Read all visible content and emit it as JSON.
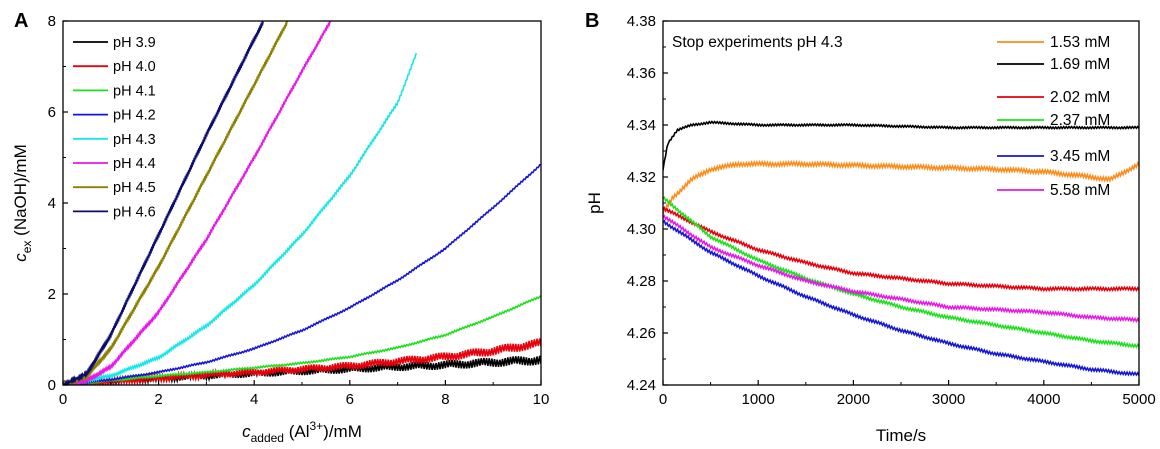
{
  "chart_data": [
    {
      "type": "line",
      "panel_label": "A",
      "xlabel": {
        "main": "c",
        "sub": "added",
        "rest": " (Al",
        "sup": "3+",
        "tail": ")/mM"
      },
      "ylabel": {
        "main": "c",
        "sub": "ex",
        "rest": " (NaOH)/mM"
      },
      "xlim": [
        0,
        10
      ],
      "ylim": [
        0,
        8
      ],
      "xticks": [
        0,
        2,
        4,
        6,
        8,
        10
      ],
      "yticks": [
        0,
        2,
        4,
        6,
        8
      ],
      "grid": false,
      "legend_position": "top-left",
      "series": [
        {
          "name": "pH 3.9",
          "color": "#000000",
          "noise": 0.05,
          "noise_amp": 0.06,
          "x": [
            0,
            1,
            2,
            3,
            4,
            5,
            6,
            7,
            8,
            9,
            10
          ],
          "y": [
            0,
            0.08,
            0.14,
            0.2,
            0.25,
            0.3,
            0.35,
            0.4,
            0.44,
            0.5,
            0.55
          ]
        },
        {
          "name": "pH 4.0",
          "color": "#e8000b",
          "noise": 0.05,
          "noise_amp": 0.06,
          "x": [
            0,
            1,
            2,
            3,
            4,
            5,
            6,
            7,
            8,
            9,
            10
          ],
          "y": [
            0,
            0.08,
            0.15,
            0.22,
            0.28,
            0.35,
            0.42,
            0.52,
            0.62,
            0.75,
            0.92
          ]
        },
        {
          "name": "pH 4.1",
          "color": "#1ee01e",
          "noise": 0.0,
          "noise_amp": 0.02,
          "x": [
            0,
            1,
            2,
            3,
            4,
            5,
            6,
            7,
            8,
            9,
            10
          ],
          "y": [
            0,
            0.1,
            0.2,
            0.28,
            0.38,
            0.48,
            0.62,
            0.82,
            1.1,
            1.5,
            1.95
          ]
        },
        {
          "name": "pH 4.2",
          "color": "#1515d6",
          "noise": 0.0,
          "noise_amp": 0.02,
          "x": [
            0,
            1,
            2,
            3,
            4,
            5,
            6,
            7,
            8,
            9,
            10
          ],
          "y": [
            0,
            0.12,
            0.28,
            0.5,
            0.8,
            1.2,
            1.7,
            2.3,
            3.0,
            3.9,
            4.85
          ]
        },
        {
          "name": "pH 4.3",
          "color": "#19e6e6",
          "noise": 0.0,
          "noise_amp": 0.03,
          "x": [
            0,
            1,
            2,
            3,
            4,
            5,
            6,
            7,
            7.4
          ],
          "y": [
            0,
            0.2,
            0.6,
            1.3,
            2.2,
            3.3,
            4.6,
            6.2,
            7.3
          ]
        },
        {
          "name": "pH 4.4",
          "color": "#e619e6",
          "noise": 0.0,
          "noise_amp": 0.03,
          "x": [
            0,
            0.5,
            1,
            2,
            3,
            4,
            5,
            5.6
          ],
          "y": [
            0,
            0.1,
            0.4,
            1.6,
            3.2,
            5.0,
            6.9,
            8.0
          ]
        },
        {
          "name": "pH 4.5",
          "color": "#8b8000",
          "noise": 0.0,
          "noise_amp": 0.03,
          "x": [
            0,
            0.5,
            1,
            2,
            3,
            4,
            4.7
          ],
          "y": [
            0,
            0.2,
            0.8,
            2.6,
            4.6,
            6.6,
            8.0
          ]
        },
        {
          "name": "pH 4.6",
          "color": "#0c0c6e",
          "noise": 0.0,
          "noise_amp": 0.03,
          "x": [
            0,
            0.5,
            1,
            2,
            3,
            4,
            4.2
          ],
          "y": [
            0,
            0.25,
            1.1,
            3.3,
            5.5,
            7.6,
            8.0
          ]
        }
      ]
    },
    {
      "type": "line",
      "panel_label": "B",
      "xlabel": "Time/s",
      "ylabel": "pH",
      "xlim": [
        0,
        5000
      ],
      "ylim": [
        4.24,
        4.38
      ],
      "xticks": [
        0,
        1000,
        2000,
        3000,
        4000,
        5000
      ],
      "yticks": [
        4.24,
        4.26,
        4.28,
        4.3,
        4.32,
        4.34,
        4.36,
        4.38
      ],
      "grid": false,
      "annotation": "Stop experiments pH 4.3",
      "legend_position": "top-right",
      "series": [
        {
          "name": "1.53 mM",
          "color": "#ff8c1a",
          "noise_amp": 0.0008,
          "x": [
            0,
            100,
            300,
            500,
            800,
            1500,
            2500,
            3500,
            4000,
            4500,
            4700,
            5000
          ],
          "y": [
            4.306,
            4.312,
            4.319,
            4.323,
            4.325,
            4.325,
            4.324,
            4.323,
            4.322,
            4.32,
            4.319,
            4.325
          ]
        },
        {
          "name": "1.69 mM",
          "color": "#000000",
          "noise_amp": 0.0004,
          "x": [
            0,
            50,
            150,
            300,
            500,
            1000,
            2000,
            3000,
            4000,
            5000
          ],
          "y": [
            4.323,
            4.333,
            4.338,
            4.34,
            4.341,
            4.34,
            4.34,
            4.339,
            4.339,
            4.339
          ]
        },
        {
          "name": "2.02 mM",
          "color": "#e8000b",
          "noise_amp": 0.0006,
          "x": [
            0,
            500,
            1000,
            1500,
            2000,
            2500,
            3000,
            3500,
            4000,
            4500,
            5000
          ],
          "y": [
            4.308,
            4.299,
            4.292,
            4.287,
            4.283,
            4.281,
            4.279,
            4.278,
            4.277,
            4.277,
            4.277
          ]
        },
        {
          "name": "2.37 mM",
          "color": "#1ee01e",
          "noise_amp": 0.0006,
          "x": [
            0,
            500,
            1000,
            1500,
            2000,
            2500,
            3000,
            3500,
            4000,
            4500,
            5000
          ],
          "y": [
            4.312,
            4.297,
            4.288,
            4.281,
            4.275,
            4.27,
            4.266,
            4.263,
            4.26,
            4.257,
            4.255
          ]
        },
        {
          "name": "3.45 mM",
          "color": "#1515d6",
          "noise_amp": 0.0006,
          "x": [
            0,
            500,
            1000,
            1500,
            2000,
            2500,
            3000,
            3500,
            4000,
            4500,
            5000
          ],
          "y": [
            4.303,
            4.291,
            4.282,
            4.274,
            4.267,
            4.261,
            4.256,
            4.252,
            4.249,
            4.246,
            4.244
          ]
        },
        {
          "name": "5.58 mM",
          "color": "#e619e6",
          "noise_amp": 0.0006,
          "x": [
            0,
            500,
            1000,
            1500,
            2000,
            2500,
            3000,
            3500,
            4000,
            4500,
            5000
          ],
          "y": [
            4.305,
            4.293,
            4.286,
            4.28,
            4.276,
            4.273,
            4.27,
            4.269,
            4.268,
            4.266,
            4.265
          ]
        }
      ]
    }
  ]
}
